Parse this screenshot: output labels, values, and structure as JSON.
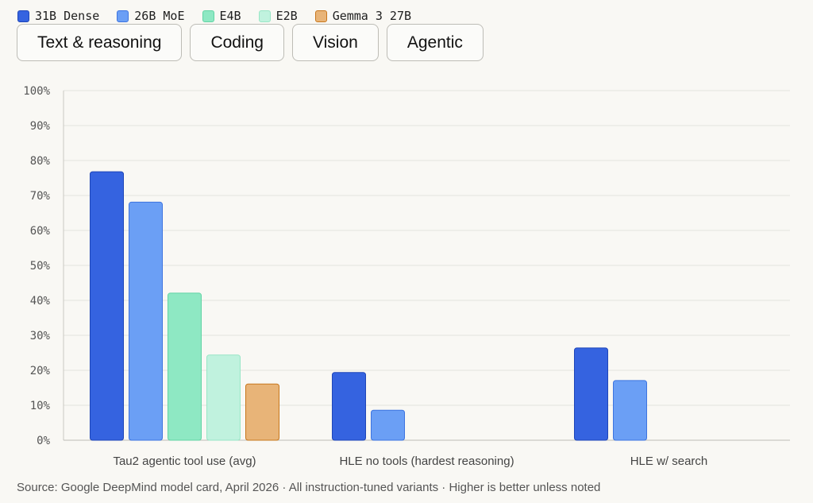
{
  "legend": [
    {
      "label": "31B Dense",
      "color": "#3563e0"
    },
    {
      "label": "26B MoE",
      "color": "#6b9ff5"
    },
    {
      "label": "E4B",
      "color": "#8ee8c3"
    },
    {
      "label": "E2B",
      "color": "#c0f2de"
    },
    {
      "label": "Gemma 3 27B",
      "color": "#e8b478"
    }
  ],
  "tabs": [
    {
      "label": "Text & reasoning"
    },
    {
      "label": "Coding"
    },
    {
      "label": "Vision"
    },
    {
      "label": "Agentic"
    }
  ],
  "chart_data": {
    "type": "bar",
    "categories": [
      "Tau2 agentic tool use (avg)",
      "HLE no tools (hardest reasoning)",
      "HLE w/ search"
    ],
    "series": [
      {
        "name": "31B Dense",
        "color": "#3563e0",
        "stroke": "#1f46b8",
        "values": [
          76.9,
          19.5,
          26.5
        ]
      },
      {
        "name": "26B MoE",
        "color": "#6b9ff5",
        "stroke": "#3d74e0",
        "values": [
          68.2,
          8.7,
          17.2
        ]
      },
      {
        "name": "E4B",
        "color": "#8ee8c3",
        "stroke": "#62d4a5",
        "values": [
          42.2,
          null,
          null
        ]
      },
      {
        "name": "E2B",
        "color": "#c0f2de",
        "stroke": "#98e6c6",
        "values": [
          24.5,
          null,
          null
        ]
      },
      {
        "name": "Gemma 3 27B",
        "color": "#e8b478",
        "stroke": "#c8771c",
        "values": [
          16.2,
          null,
          null
        ]
      }
    ],
    "yticks": [
      "0%",
      "10%",
      "20%",
      "30%",
      "40%",
      "50%",
      "60%",
      "70%",
      "80%",
      "90%",
      "100%"
    ],
    "ylim": [
      0,
      100
    ],
    "grid": true,
    "title": "",
    "xlabel": "",
    "ylabel": ""
  },
  "footer": {
    "source": "Source: Google DeepMind model card, April 2026 · All instruction-tuned variants · Higher is better unless noted"
  }
}
